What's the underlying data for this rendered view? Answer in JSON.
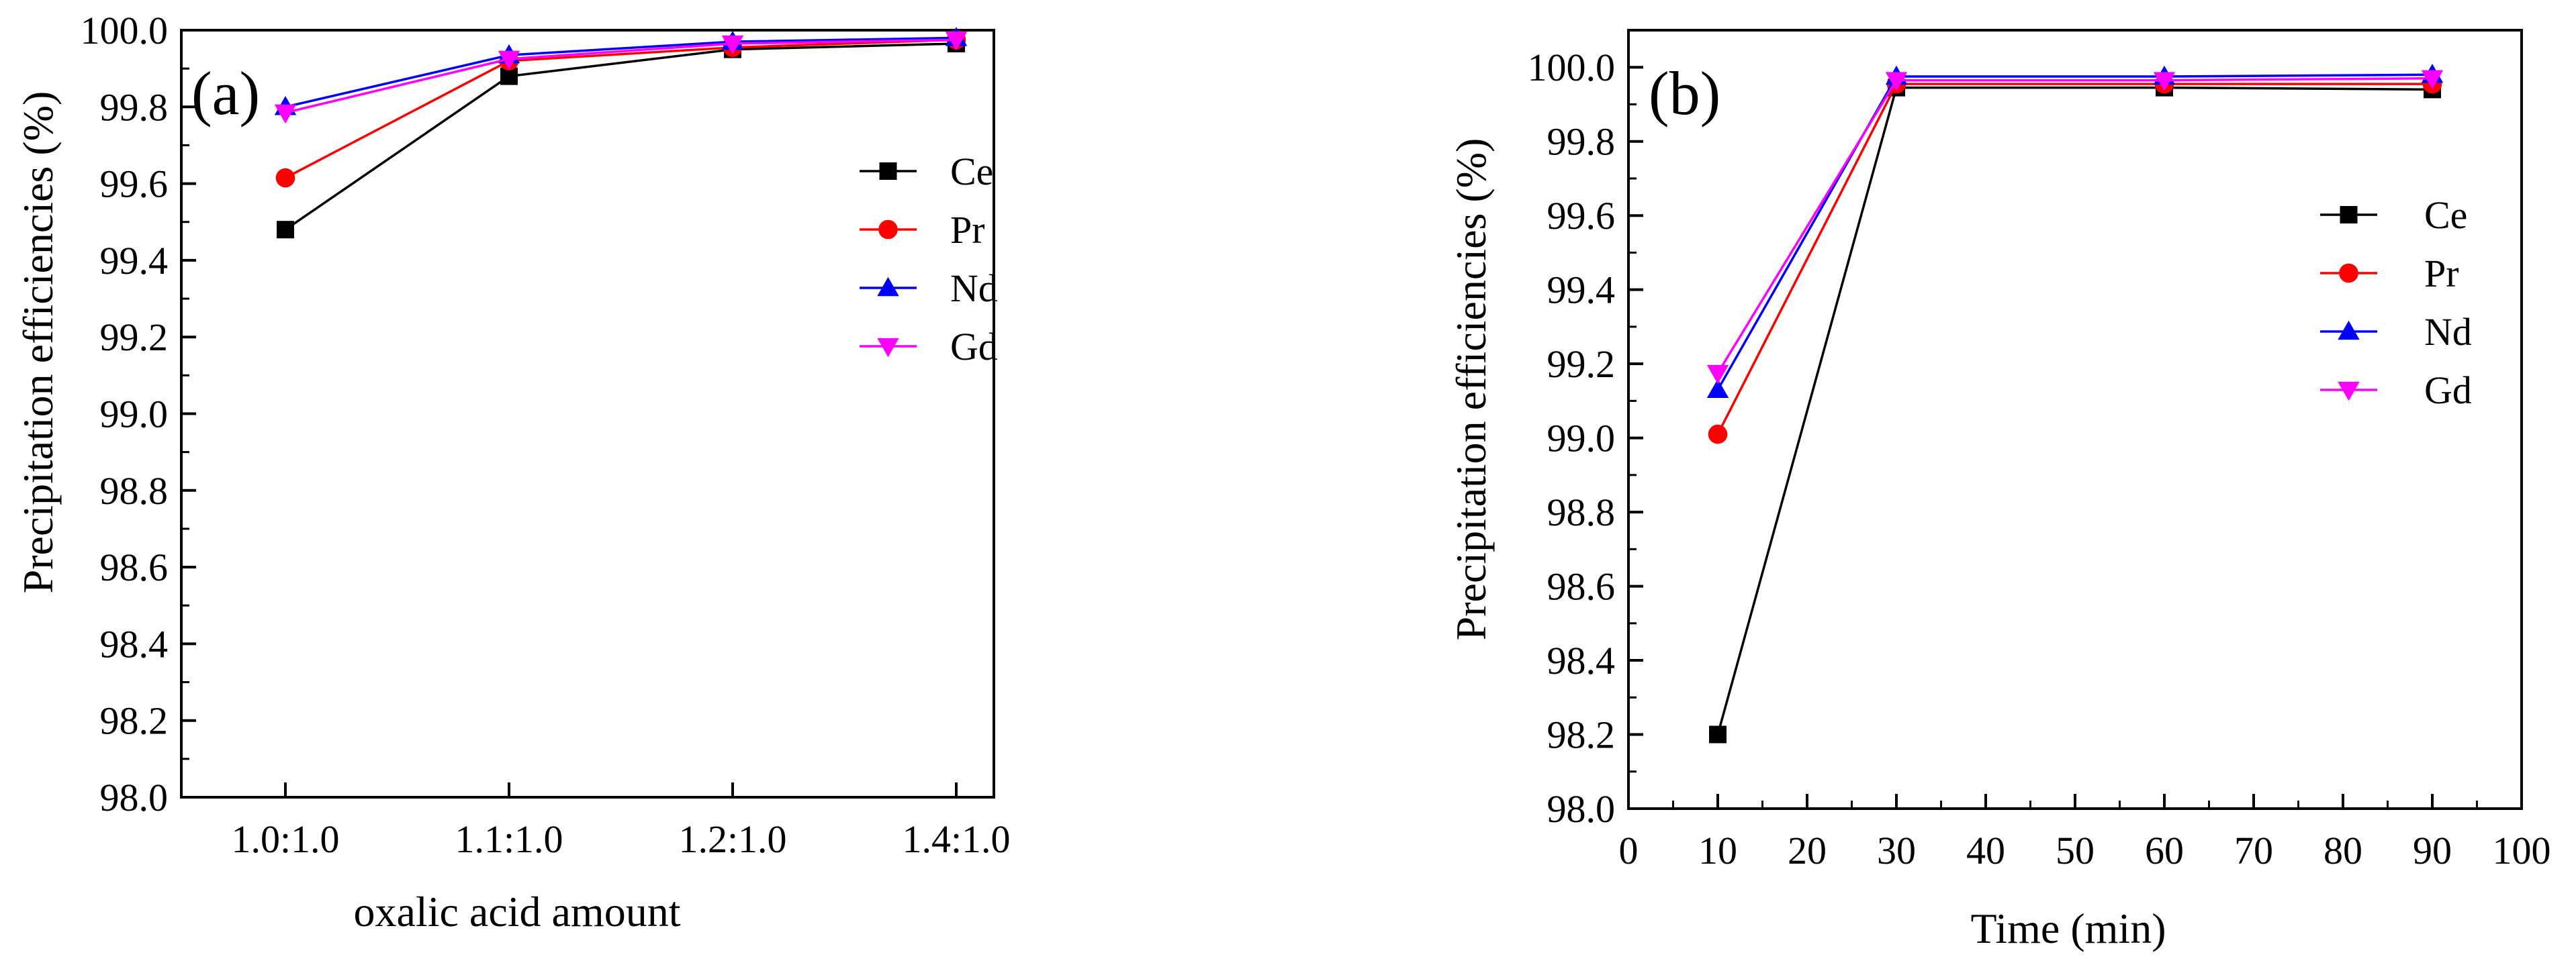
{
  "chart_data": [
    {
      "type": "line",
      "panel_label": "(a)",
      "xlabel": "oxalic acid amount",
      "ylabel": "Precipitation efficiencies (%)",
      "categories": [
        "1.0:1.0",
        "1.1:1.0",
        "1.2:1.0",
        "1.4:1.0"
      ],
      "ylim": [
        98.0,
        100.0
      ],
      "yticks": [
        "98.0",
        "98.2",
        "98.4",
        "98.6",
        "98.8",
        "99.0",
        "99.2",
        "99.4",
        "99.6",
        "99.8",
        "100.0"
      ],
      "legend_position": "right",
      "series": [
        {
          "name": "Ce",
          "color": "#000000",
          "marker": "square",
          "values": [
            99.48,
            99.88,
            99.95,
            99.965
          ]
        },
        {
          "name": "Pr",
          "color": "#ff0000",
          "marker": "circle",
          "values": [
            99.615,
            99.92,
            99.955,
            99.975
          ]
        },
        {
          "name": "Nd",
          "color": "#0000ff",
          "marker": "triangle-up",
          "values": [
            99.8,
            99.935,
            99.97,
            99.98
          ]
        },
        {
          "name": "Gd",
          "color": "#ff00ff",
          "marker": "triangle-down",
          "values": [
            99.785,
            99.925,
            99.965,
            99.975
          ]
        }
      ]
    },
    {
      "type": "line",
      "panel_label": "(b)",
      "xlabel": "Time (min)",
      "ylabel": "Precipitation efficiencies (%)",
      "xlim": [
        0,
        100
      ],
      "xticks": [
        "0",
        "10",
        "20",
        "30",
        "40",
        "50",
        "60",
        "70",
        "80",
        "90",
        "100"
      ],
      "ylim": [
        98.0,
        100.1
      ],
      "yticks": [
        "98.0",
        "98.2",
        "98.4",
        "98.6",
        "98.8",
        "99.0",
        "99.2",
        "99.4",
        "99.6",
        "99.8",
        "100.0"
      ],
      "legend_position": "right",
      "x": [
        10,
        30,
        60,
        90
      ],
      "series": [
        {
          "name": "Ce",
          "color": "#000000",
          "marker": "square",
          "values": [
            98.2,
            99.945,
            99.945,
            99.94
          ]
        },
        {
          "name": "Pr",
          "color": "#ff0000",
          "marker": "circle",
          "values": [
            99.01,
            99.955,
            99.955,
            99.955
          ]
        },
        {
          "name": "Nd",
          "color": "#0000ff",
          "marker": "triangle-up",
          "values": [
            99.13,
            99.975,
            99.975,
            99.98
          ]
        },
        {
          "name": "Gd",
          "color": "#ff00ff",
          "marker": "triangle-down",
          "values": [
            99.175,
            99.965,
            99.965,
            99.97
          ]
        }
      ]
    }
  ]
}
